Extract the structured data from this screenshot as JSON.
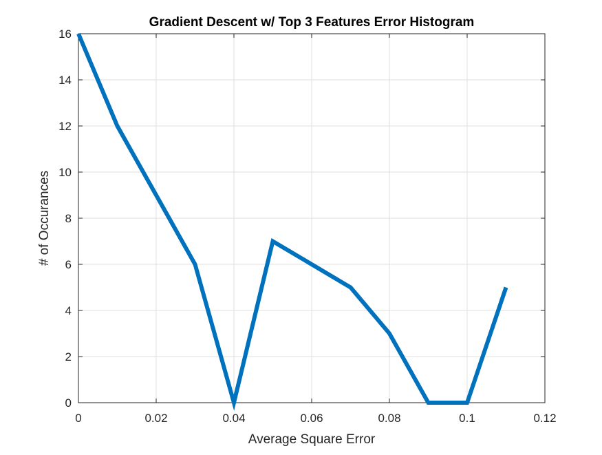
{
  "chart_data": {
    "type": "line",
    "title": "Gradient Descent w/ Top 3 Features Error Histogram",
    "xlabel": "Average Square Error",
    "ylabel": "# of Occurances",
    "xlim": [
      0,
      0.12
    ],
    "ylim": [
      0,
      16
    ],
    "xticks": [
      0,
      0.02,
      0.04,
      0.06,
      0.08,
      0.1,
      0.12
    ],
    "xtick_labels": [
      "0",
      "0.02",
      "0.04",
      "0.06",
      "0.08",
      "0.1",
      "0.12"
    ],
    "yticks": [
      0,
      2,
      4,
      6,
      8,
      10,
      12,
      14,
      16
    ],
    "ytick_labels": [
      "0",
      "2",
      "4",
      "6",
      "8",
      "10",
      "12",
      "14",
      "16"
    ],
    "grid": true,
    "series": [
      {
        "x": [
          0,
          0.01,
          0.02,
          0.03,
          0.04,
          0.05,
          0.06,
          0.07,
          0.08,
          0.09,
          0.1,
          0.11
        ],
        "y": [
          16,
          12,
          9,
          6,
          0,
          7,
          6,
          5,
          3,
          0,
          0,
          5
        ],
        "color": "#0072BD"
      }
    ]
  }
}
